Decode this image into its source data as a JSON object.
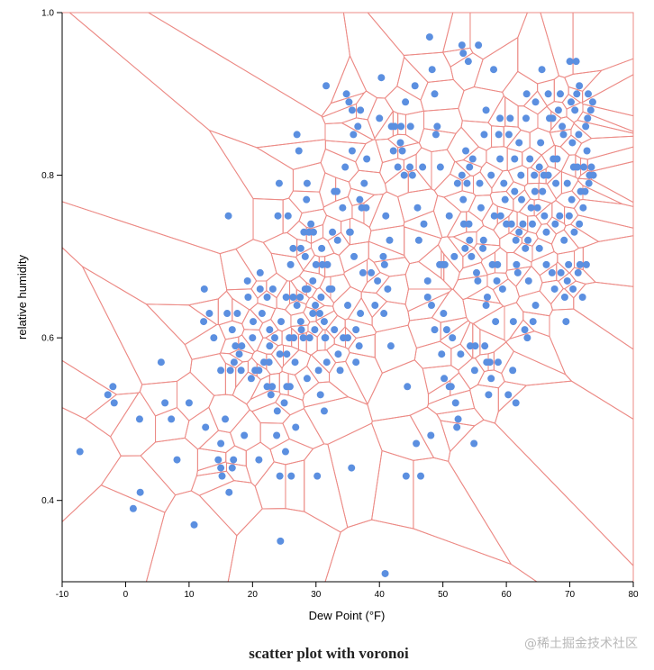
{
  "caption": "scatter plot with voronoi",
  "watermark": "@稀土掘金技术社区",
  "colors": {
    "point": "#5b8fe0",
    "voronoi": "#ec8b86",
    "axis": "#000000"
  },
  "chart_data": {
    "type": "scatter",
    "overlay": "voronoi",
    "title": "",
    "xlabel": "Dew Point (°F)",
    "ylabel": "relative humidity",
    "xlim": [
      -10,
      80
    ],
    "ylim": [
      0.3,
      1.0
    ],
    "x_ticks": [
      -10,
      0,
      10,
      20,
      30,
      40,
      50,
      60,
      70,
      80
    ],
    "y_ticks": [
      "0.4",
      "0.6",
      "0.8",
      "1.0"
    ],
    "grid": false,
    "points": [
      [
        -7.2,
        0.46
      ],
      [
        -2.8,
        0.53
      ],
      [
        -2.0,
        0.54
      ],
      [
        -1.8,
        0.52
      ],
      [
        1.2,
        0.39
      ],
      [
        2.3,
        0.41
      ],
      [
        2.2,
        0.5
      ],
      [
        5.6,
        0.57
      ],
      [
        6.2,
        0.52
      ],
      [
        7.2,
        0.5
      ],
      [
        8.1,
        0.45
      ],
      [
        10.0,
        0.52
      ],
      [
        10.8,
        0.37
      ],
      [
        12.3,
        0.62
      ],
      [
        12.4,
        0.66
      ],
      [
        12.6,
        0.49
      ],
      [
        13.2,
        0.63
      ],
      [
        13.9,
        0.6
      ],
      [
        14.6,
        0.45
      ],
      [
        15.0,
        0.44
      ],
      [
        15.2,
        0.43
      ],
      [
        15.0,
        0.47
      ],
      [
        15.0,
        0.56
      ],
      [
        15.7,
        0.5
      ],
      [
        16.0,
        0.63
      ],
      [
        16.2,
        0.75
      ],
      [
        16.3,
        0.41
      ],
      [
        16.5,
        0.56
      ],
      [
        16.8,
        0.44
      ],
      [
        16.8,
        0.61
      ],
      [
        17.0,
        0.45
      ],
      [
        17.1,
        0.57
      ],
      [
        17.3,
        0.59
      ],
      [
        17.6,
        0.63
      ],
      [
        17.9,
        0.58
      ],
      [
        18.2,
        0.56
      ],
      [
        18.3,
        0.59
      ],
      [
        18.7,
        0.48
      ],
      [
        19.3,
        0.65
      ],
      [
        19.2,
        0.67
      ],
      [
        19.8,
        0.55
      ],
      [
        20.0,
        0.6
      ],
      [
        20.1,
        0.62
      ],
      [
        20.4,
        0.56
      ],
      [
        21.0,
        0.45
      ],
      [
        21.0,
        0.56
      ],
      [
        21.2,
        0.66
      ],
      [
        21.2,
        0.68
      ],
      [
        21.5,
        0.63
      ],
      [
        21.8,
        0.57
      ],
      [
        22.3,
        0.54
      ],
      [
        22.3,
        0.65
      ],
      [
        22.6,
        0.57
      ],
      [
        22.7,
        0.59
      ],
      [
        22.7,
        0.61
      ],
      [
        22.9,
        0.53
      ],
      [
        23.1,
        0.54
      ],
      [
        23.2,
        0.66
      ],
      [
        23.5,
        0.6
      ],
      [
        23.8,
        0.48
      ],
      [
        23.9,
        0.51
      ],
      [
        24.0,
        0.75
      ],
      [
        24.2,
        0.79
      ],
      [
        24.3,
        0.43
      ],
      [
        24.3,
        0.58
      ],
      [
        24.4,
        0.35
      ],
      [
        24.5,
        0.62
      ],
      [
        25.0,
        0.52
      ],
      [
        25.2,
        0.46
      ],
      [
        25.3,
        0.65
      ],
      [
        25.4,
        0.54
      ],
      [
        25.4,
        0.58
      ],
      [
        25.6,
        0.75
      ],
      [
        25.8,
        0.6
      ],
      [
        25.9,
        0.54
      ],
      [
        26.0,
        0.69
      ],
      [
        26.1,
        0.43
      ],
      [
        26.4,
        0.65
      ],
      [
        26.4,
        0.71
      ],
      [
        26.5,
        0.6
      ],
      [
        26.7,
        0.57
      ],
      [
        26.8,
        0.49
      ],
      [
        27.0,
        0.64
      ],
      [
        27.0,
        0.85
      ],
      [
        27.3,
        0.83
      ],
      [
        27.5,
        0.65
      ],
      [
        27.6,
        0.62
      ],
      [
        27.6,
        0.71
      ],
      [
        27.7,
        0.61
      ],
      [
        28.0,
        0.6
      ],
      [
        28.1,
        0.73
      ],
      [
        28.3,
        0.66
      ],
      [
        28.3,
        0.7
      ],
      [
        28.5,
        0.77
      ],
      [
        28.6,
        0.55
      ],
      [
        28.6,
        0.79
      ],
      [
        28.7,
        0.66
      ],
      [
        28.9,
        0.73
      ],
      [
        29.0,
        0.6
      ],
      [
        29.2,
        0.74
      ],
      [
        29.5,
        0.63
      ],
      [
        29.5,
        0.67
      ],
      [
        29.6,
        0.73
      ],
      [
        29.8,
        0.61
      ],
      [
        29.9,
        0.64
      ],
      [
        30.0,
        0.69
      ],
      [
        30.2,
        0.43
      ],
      [
        30.4,
        0.56
      ],
      [
        30.6,
        0.63
      ],
      [
        30.7,
        0.53
      ],
      [
        30.8,
        0.65
      ],
      [
        30.9,
        0.71
      ],
      [
        31.0,
        0.69
      ],
      [
        31.3,
        0.51
      ],
      [
        31.3,
        0.62
      ],
      [
        31.4,
        0.6
      ],
      [
        31.5,
        0.6
      ],
      [
        31.6,
        0.91
      ],
      [
        31.7,
        0.57
      ],
      [
        31.8,
        0.69
      ],
      [
        32.1,
        0.66
      ],
      [
        32.5,
        0.66
      ],
      [
        32.6,
        0.73
      ],
      [
        32.9,
        0.78
      ],
      [
        32.9,
        0.61
      ],
      [
        33.3,
        0.78
      ],
      [
        33.4,
        0.72
      ],
      [
        33.5,
        0.58
      ],
      [
        33.8,
        0.56
      ],
      [
        34.2,
        0.76
      ],
      [
        34.3,
        0.6
      ],
      [
        34.6,
        0.81
      ],
      [
        34.8,
        0.9
      ],
      [
        35.0,
        0.6
      ],
      [
        35.0,
        0.64
      ],
      [
        35.2,
        0.89
      ],
      [
        35.3,
        0.73
      ],
      [
        35.4,
        0.73
      ],
      [
        35.6,
        0.44
      ],
      [
        35.7,
        0.83
      ],
      [
        35.7,
        0.88
      ],
      [
        35.9,
        0.85
      ],
      [
        36.0,
        0.7
      ],
      [
        36.3,
        0.61
      ],
      [
        36.3,
        0.57
      ],
      [
        36.6,
        0.86
      ],
      [
        36.8,
        0.59
      ],
      [
        36.9,
        0.77
      ],
      [
        37.0,
        0.63
      ],
      [
        37.0,
        0.88
      ],
      [
        37.2,
        0.76
      ],
      [
        37.4,
        0.68
      ],
      [
        37.6,
        0.79
      ],
      [
        37.9,
        0.76
      ],
      [
        38.0,
        0.82
      ],
      [
        38.7,
        0.68
      ],
      [
        39.3,
        0.64
      ],
      [
        39.7,
        0.67
      ],
      [
        40.0,
        0.87
      ],
      [
        40.3,
        0.92
      ],
      [
        40.6,
        0.7
      ],
      [
        40.7,
        0.63
      ],
      [
        40.8,
        0.69
      ],
      [
        40.9,
        0.31
      ],
      [
        41.0,
        0.75
      ],
      [
        41.3,
        0.66
      ],
      [
        41.6,
        0.72
      ],
      [
        41.8,
        0.59
      ],
      [
        41.9,
        0.86
      ],
      [
        42.2,
        0.83
      ],
      [
        42.4,
        0.86
      ],
      [
        42.9,
        0.81
      ],
      [
        43.3,
        0.84
      ],
      [
        43.4,
        0.86
      ],
      [
        43.6,
        0.83
      ],
      [
        43.9,
        0.8
      ],
      [
        44.1,
        0.89
      ],
      [
        44.2,
        0.43
      ],
      [
        44.4,
        0.54
      ],
      [
        44.8,
        0.81
      ],
      [
        44.9,
        0.86
      ],
      [
        45.2,
        0.8
      ],
      [
        45.6,
        0.91
      ],
      [
        45.8,
        0.47
      ],
      [
        46.0,
        0.76
      ],
      [
        46.2,
        0.72
      ],
      [
        46.5,
        0.43
      ],
      [
        46.8,
        0.81
      ],
      [
        47.0,
        0.74
      ],
      [
        47.6,
        0.65
      ],
      [
        47.6,
        0.67
      ],
      [
        47.9,
        0.97
      ],
      [
        48.1,
        0.48
      ],
      [
        48.2,
        0.64
      ],
      [
        48.3,
        0.93
      ],
      [
        48.7,
        0.9
      ],
      [
        48.7,
        0.61
      ],
      [
        48.9,
        0.85
      ],
      [
        49.1,
        0.86
      ],
      [
        49.5,
        0.69
      ],
      [
        49.6,
        0.81
      ],
      [
        49.8,
        0.58
      ],
      [
        50.0,
        0.69
      ],
      [
        50.1,
        0.63
      ],
      [
        50.2,
        0.55
      ],
      [
        50.3,
        0.69
      ],
      [
        50.6,
        0.61
      ],
      [
        51.0,
        0.54
      ],
      [
        51.0,
        0.75
      ],
      [
        51.3,
        0.54
      ],
      [
        51.5,
        0.6
      ],
      [
        51.8,
        0.7
      ],
      [
        52.0,
        0.52
      ],
      [
        52.2,
        0.49
      ],
      [
        52.3,
        0.79
      ],
      [
        52.4,
        0.5
      ],
      [
        52.8,
        0.58
      ],
      [
        53.0,
        0.8
      ],
      [
        53.0,
        0.96
      ],
      [
        53.2,
        0.95
      ],
      [
        53.2,
        0.77
      ],
      [
        53.3,
        0.74
      ],
      [
        53.5,
        0.71
      ],
      [
        53.6,
        0.83
      ],
      [
        53.8,
        0.79
      ],
      [
        54.0,
        0.94
      ],
      [
        54.1,
        0.74
      ],
      [
        54.2,
        0.81
      ],
      [
        54.2,
        0.72
      ],
      [
        54.3,
        0.59
      ],
      [
        54.5,
        0.7
      ],
      [
        54.7,
        0.82
      ],
      [
        54.9,
        0.47
      ],
      [
        55.0,
        0.56
      ],
      [
        55.1,
        0.59
      ],
      [
        55.3,
        0.68
      ],
      [
        55.5,
        0.67
      ],
      [
        55.6,
        0.96
      ],
      [
        55.8,
        0.79
      ],
      [
        56.0,
        0.76
      ],
      [
        56.3,
        0.71
      ],
      [
        56.4,
        0.72
      ],
      [
        56.5,
        0.85
      ],
      [
        56.6,
        0.59
      ],
      [
        56.8,
        0.88
      ],
      [
        56.8,
        0.64
      ],
      [
        56.9,
        0.57
      ],
      [
        57.0,
        0.65
      ],
      [
        57.2,
        0.53
      ],
      [
        57.4,
        0.57
      ],
      [
        57.6,
        0.55
      ],
      [
        57.6,
        0.8
      ],
      [
        57.8,
        0.69
      ],
      [
        58.0,
        0.93
      ],
      [
        58.1,
        0.75
      ],
      [
        58.3,
        0.62
      ],
      [
        58.5,
        0.67
      ],
      [
        58.6,
        0.69
      ],
      [
        58.7,
        0.57
      ],
      [
        58.8,
        0.85
      ],
      [
        59.0,
        0.82
      ],
      [
        59.0,
        0.87
      ],
      [
        59.1,
        0.75
      ],
      [
        59.4,
        0.66
      ],
      [
        59.6,
        0.79
      ],
      [
        59.8,
        0.77
      ],
      [
        60.0,
        0.74
      ],
      [
        60.3,
        0.53
      ],
      [
        60.4,
        0.85
      ],
      [
        60.6,
        0.87
      ],
      [
        60.8,
        0.74
      ],
      [
        61.0,
        0.56
      ],
      [
        61.1,
        0.62
      ],
      [
        61.3,
        0.82
      ],
      [
        61.3,
        0.78
      ],
      [
        61.5,
        0.72
      ],
      [
        61.5,
        0.52
      ],
      [
        61.6,
        0.69
      ],
      [
        61.8,
        0.68
      ],
      [
        62.0,
        0.84
      ],
      [
        62.0,
        0.73
      ],
      [
        62.3,
        0.8
      ],
      [
        62.4,
        0.77
      ],
      [
        62.6,
        0.74
      ],
      [
        62.9,
        0.61
      ],
      [
        63.0,
        0.71
      ],
      [
        63.1,
        0.87
      ],
      [
        63.2,
        0.9
      ],
      [
        63.3,
        0.6
      ],
      [
        63.4,
        0.72
      ],
      [
        63.5,
        0.67
      ],
      [
        63.7,
        0.82
      ],
      [
        63.9,
        0.76
      ],
      [
        64.1,
        0.74
      ],
      [
        64.2,
        0.62
      ],
      [
        64.4,
        0.8
      ],
      [
        64.5,
        0.78
      ],
      [
        64.6,
        0.64
      ],
      [
        64.6,
        0.89
      ],
      [
        64.9,
        0.76
      ],
      [
        65.2,
        0.81
      ],
      [
        65.2,
        0.71
      ],
      [
        65.4,
        0.84
      ],
      [
        65.6,
        0.93
      ],
      [
        65.7,
        0.78
      ],
      [
        65.9,
        0.8
      ],
      [
        66.0,
        0.75
      ],
      [
        66.3,
        0.69
      ],
      [
        66.3,
        0.73
      ],
      [
        66.6,
        0.8
      ],
      [
        66.6,
        0.9
      ],
      [
        66.8,
        0.87
      ],
      [
        67.2,
        0.68
      ],
      [
        67.3,
        0.87
      ],
      [
        67.4,
        0.82
      ],
      [
        67.6,
        0.66
      ],
      [
        67.7,
        0.74
      ],
      [
        67.8,
        0.79
      ],
      [
        68.0,
        0.82
      ],
      [
        68.2,
        0.88
      ],
      [
        68.4,
        0.75
      ],
      [
        68.5,
        0.9
      ],
      [
        68.6,
        0.68
      ],
      [
        68.8,
        0.86
      ],
      [
        69.0,
        0.85
      ],
      [
        69.1,
        0.72
      ],
      [
        69.2,
        0.65
      ],
      [
        69.4,
        0.62
      ],
      [
        69.6,
        0.79
      ],
      [
        69.6,
        0.67
      ],
      [
        69.8,
        0.69
      ],
      [
        69.9,
        0.75
      ],
      [
        70.0,
        0.94
      ],
      [
        70.2,
        0.89
      ],
      [
        70.3,
        0.77
      ],
      [
        70.4,
        0.84
      ],
      [
        70.5,
        0.66
      ],
      [
        70.6,
        0.81
      ],
      [
        70.7,
        0.73
      ],
      [
        70.8,
        0.88
      ],
      [
        71.0,
        0.94
      ],
      [
        71.1,
        0.9
      ],
      [
        71.2,
        0.81
      ],
      [
        71.3,
        0.68
      ],
      [
        71.4,
        0.85
      ],
      [
        71.5,
        0.74
      ],
      [
        71.5,
        0.91
      ],
      [
        71.6,
        0.69
      ],
      [
        71.7,
        0.78
      ],
      [
        72.0,
        0.65
      ],
      [
        72.1,
        0.76
      ],
      [
        72.2,
        0.81
      ],
      [
        72.4,
        0.78
      ],
      [
        72.5,
        0.86
      ],
      [
        72.6,
        0.69
      ],
      [
        72.7,
        0.83
      ],
      [
        72.8,
        0.87
      ],
      [
        72.9,
        0.9
      ],
      [
        73.0,
        0.79
      ],
      [
        73.1,
        0.8
      ],
      [
        73.3,
        0.88
      ],
      [
        73.4,
        0.81
      ],
      [
        73.6,
        0.89
      ],
      [
        73.7,
        0.8
      ]
    ]
  }
}
